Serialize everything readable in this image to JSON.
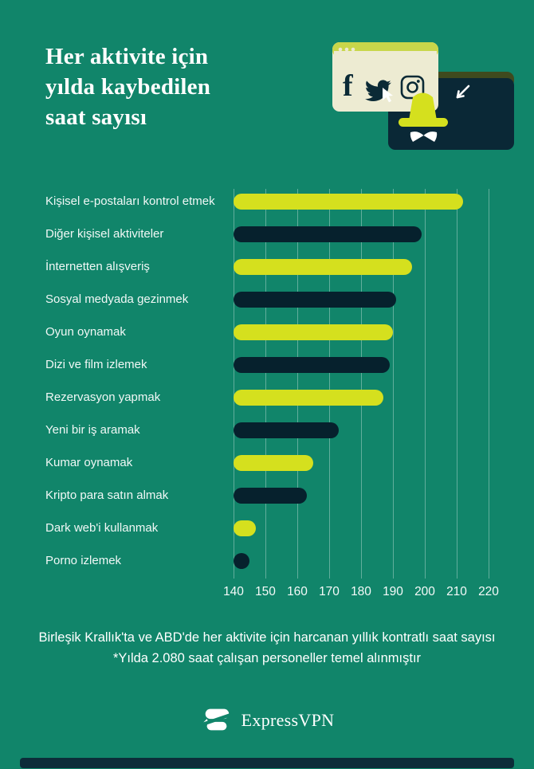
{
  "colors": {
    "background": "#11856A",
    "lime": "#D5E01E",
    "navy": "#06212D",
    "cream": "#EDEBD2",
    "window_bar_lime": "#C8D64A",
    "window_bar_olive": "#3F4A1E",
    "text": "#FFFFFF"
  },
  "header": {
    "title_lines": [
      "Her aktivite için",
      "yılda kaybedilen",
      "saat sayısı"
    ]
  },
  "illustration": {
    "icons": [
      "browser-window",
      "facebook",
      "twitter",
      "instagram",
      "cursor",
      "spy-window",
      "spy-hat",
      "arrow-cursor"
    ]
  },
  "chart_data": {
    "type": "bar",
    "orientation": "horizontal",
    "title": "Her aktivite için yılda kaybedilen saat sayısı",
    "categories": [
      "Kişisel e-postaları kontrol etmek",
      "Diğer kişisel aktiviteler",
      "İnternetten alışveriş",
      "Sosyal medyada gezinmek",
      "Oyun oynamak",
      "Dizi ve film izlemek",
      "Rezervasyon yapmak",
      "Yeni bir iş aramak",
      "Kumar oynamak",
      "Kripto para satın almak",
      "Dark web'i kullanmak",
      "Porno izlemek"
    ],
    "values": [
      212,
      199,
      196,
      191,
      190,
      189,
      187,
      173,
      165,
      163,
      147,
      145
    ],
    "bar_colors": [
      "#D5E01E",
      "#06212D",
      "#D5E01E",
      "#06212D",
      "#D5E01E",
      "#06212D",
      "#D5E01E",
      "#06212D",
      "#D5E01E",
      "#06212D",
      "#D5E01E",
      "#06212D"
    ],
    "x_ticks": [
      140,
      150,
      160,
      170,
      180,
      190,
      200,
      210,
      220
    ],
    "xlim": [
      140,
      220
    ],
    "unit": "saat",
    "grid": true,
    "legend": false
  },
  "footer": {
    "line1": "Birleşik Krallık'ta ve ABD'de her aktivite için harcanan yıllık kontratlı saat sayısı",
    "line2": "*Yılda 2.080 saat çalışan personeller temel alınmıştır"
  },
  "brand": {
    "name": "ExpressVPN"
  }
}
